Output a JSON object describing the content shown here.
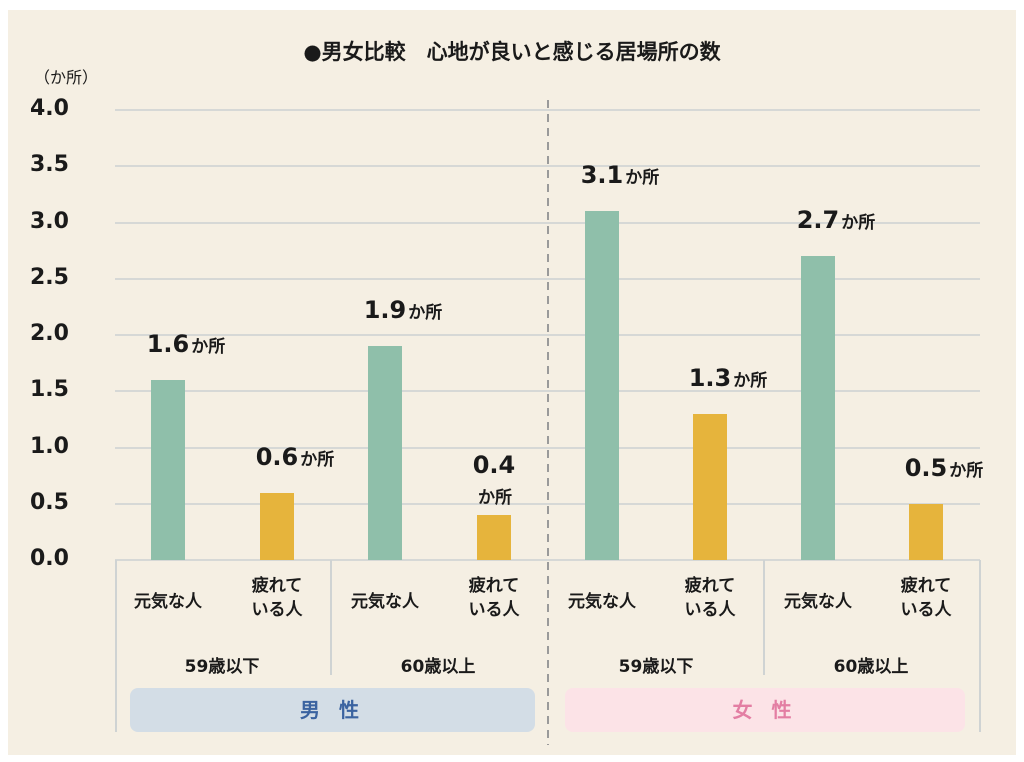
{
  "chart_data": {
    "type": "bar",
    "title": "●男女比較　心地が良いと感じる居場所の数",
    "ylabel": "（か所）",
    "ylim": [
      0,
      4
    ],
    "yticks": [
      "0.0",
      "0.5",
      "1.0",
      "1.5",
      "2.0",
      "2.5",
      "3.0",
      "3.5",
      "4.0"
    ],
    "value_unit": "か所",
    "categories": [
      "元気な人",
      "疲れて\nいる人",
      "元気な人",
      "疲れて\nいる人",
      "元気な人",
      "疲れて\nいる人",
      "元気な人",
      "疲れて\nいる人"
    ],
    "age_groups": [
      "59歳以下",
      "60歳以上",
      "59歳以下",
      "60歳以上"
    ],
    "genders": [
      "男 性",
      "女 性"
    ],
    "values": [
      1.6,
      0.6,
      1.9,
      0.4,
      3.1,
      1.3,
      2.7,
      0.5
    ],
    "value_labels": [
      "1.6",
      "0.6",
      "1.9",
      "0.4",
      "3.1",
      "1.3",
      "2.7",
      "0.5"
    ],
    "colors": {
      "energetic": "#8fbfaa",
      "tired": "#e6b43c",
      "male_bg": "#d3dde6",
      "male_text": "#3b63a0",
      "female_bg": "#fce3e7",
      "female_text": "#e37ea3"
    }
  }
}
